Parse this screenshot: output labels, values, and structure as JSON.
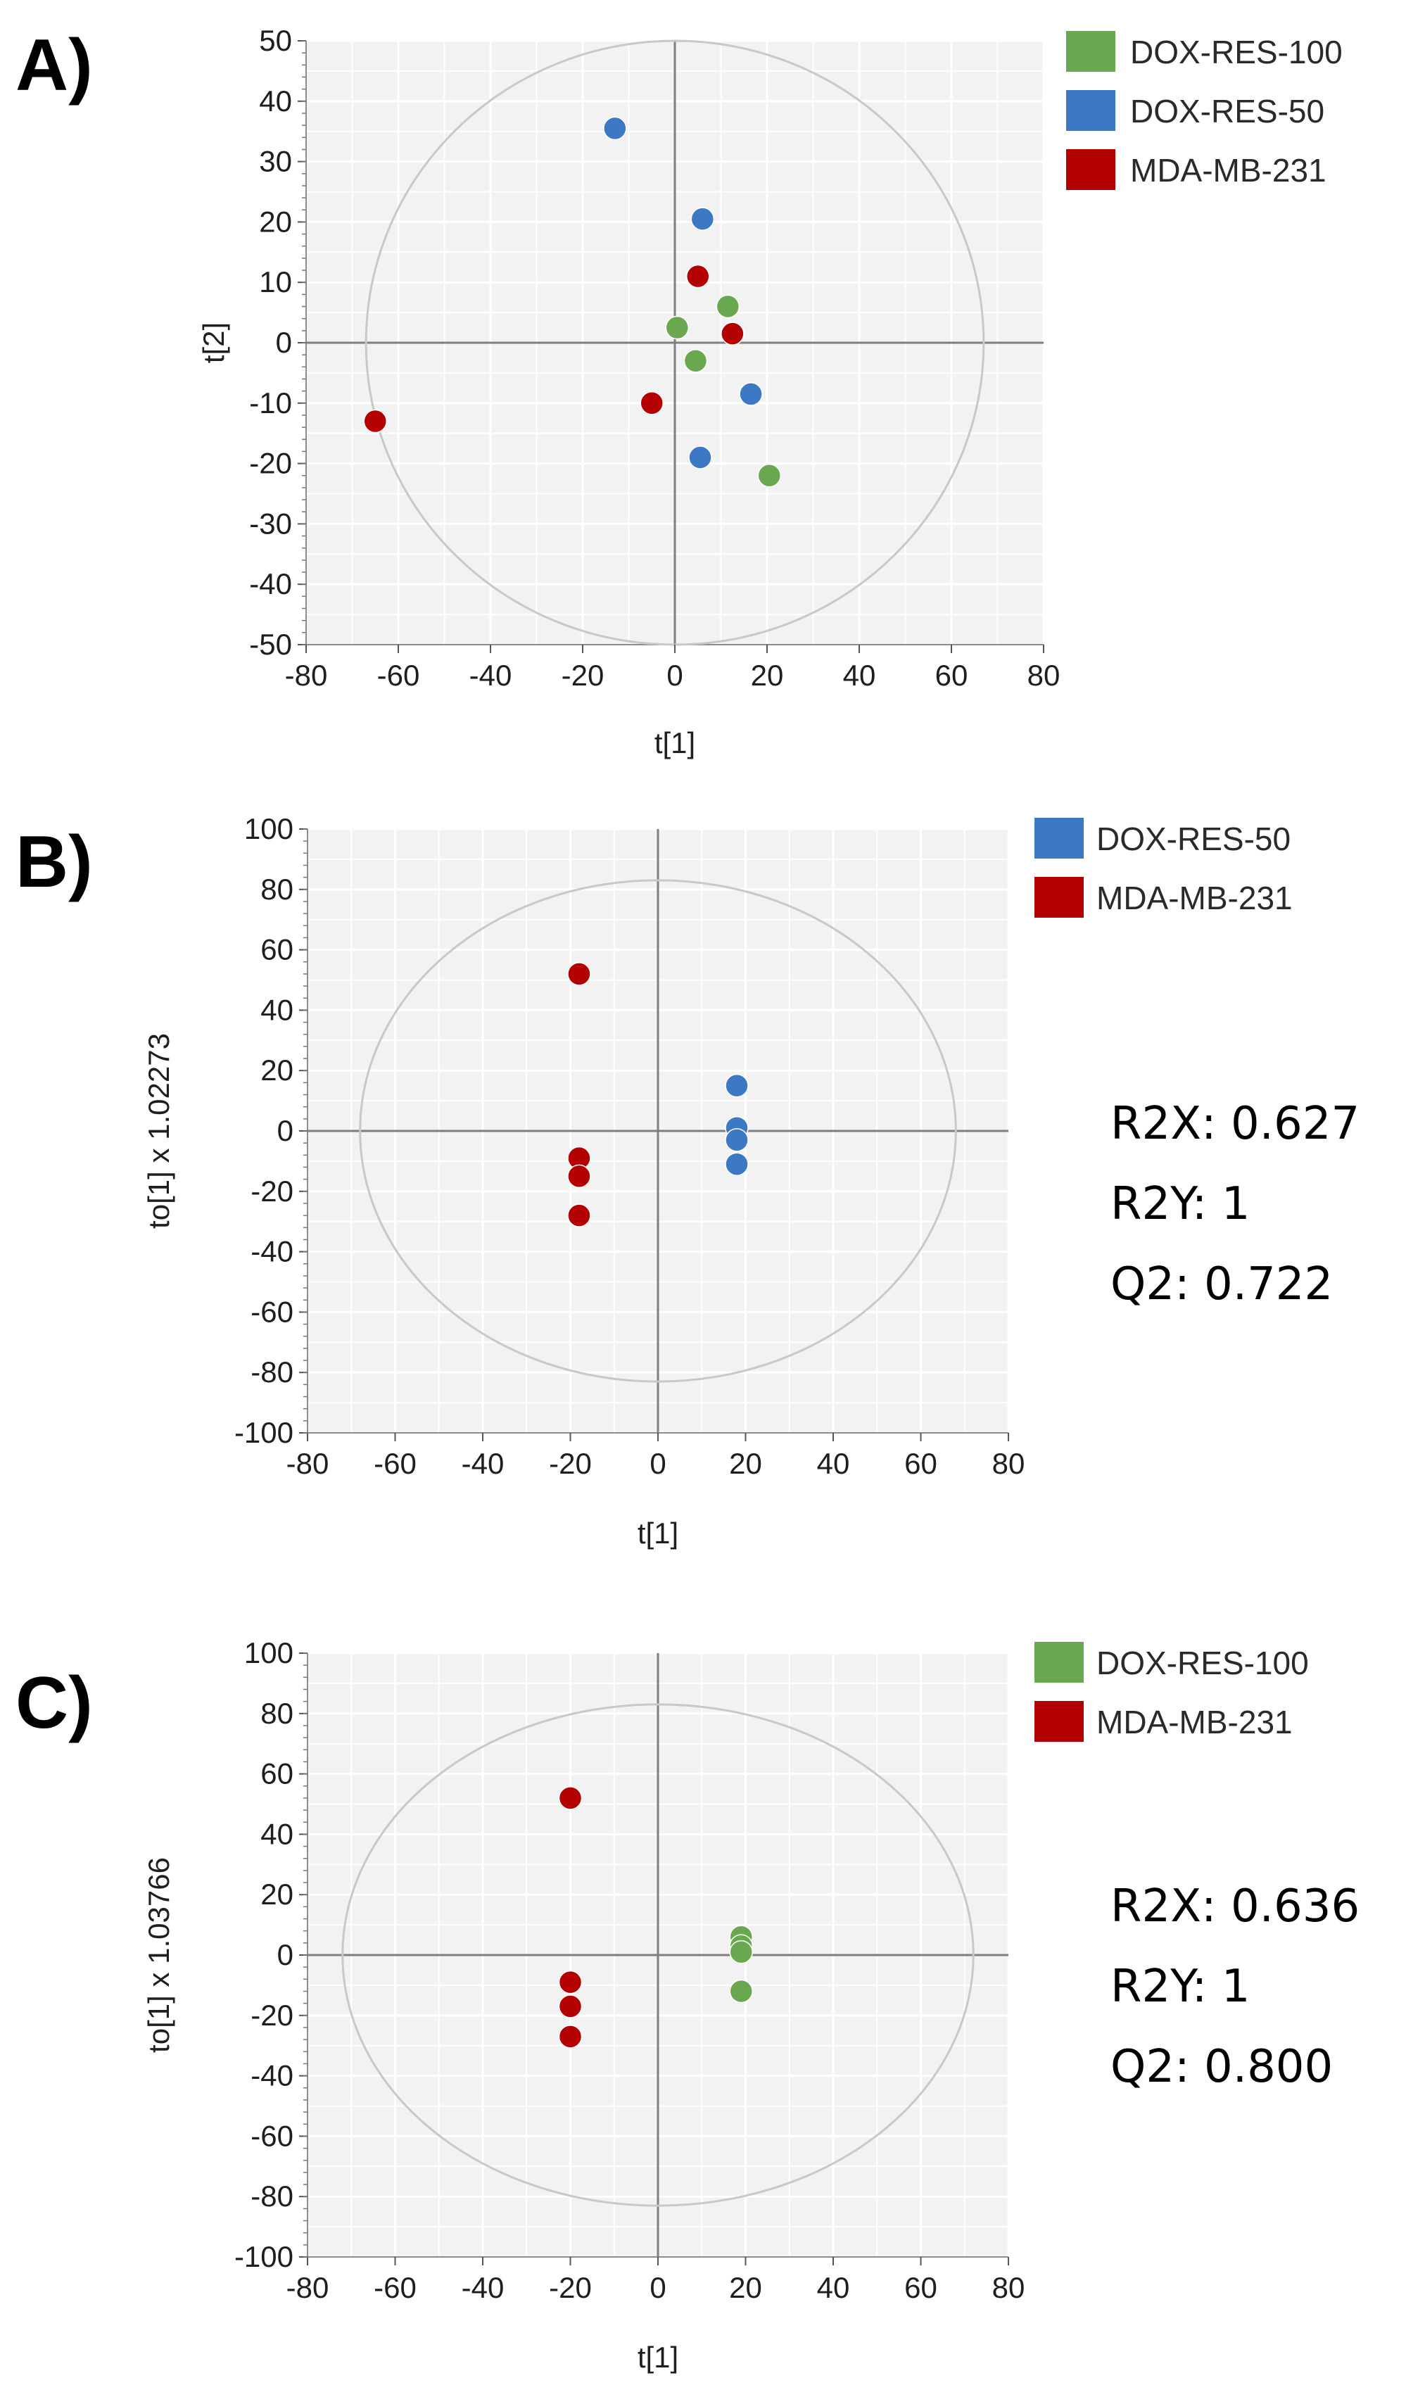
{
  "colors": {
    "dox_res_100": "#6aa84f",
    "dox_res_50": "#3d78c4",
    "mda_mb_231": "#b30000",
    "plot_background": "#f2f2f2",
    "grid": "#ffffff",
    "zero_line": "#7f7f7f",
    "ellipse": "#c8c8c8"
  },
  "chart_data": [
    {
      "type": "scatter",
      "panel_label": "A)",
      "title": "",
      "xlabel": "t[1]",
      "ylabel": "t[2]",
      "xlim": [
        -80,
        80
      ],
      "ylim": [
        -50,
        50
      ],
      "xticks": [
        -80,
        -60,
        -40,
        -20,
        0,
        20,
        40,
        60,
        80
      ],
      "yticks": [
        -50,
        -40,
        -30,
        -20,
        -10,
        0,
        10,
        20,
        30,
        40,
        50
      ],
      "ellipse": {
        "cx": 0,
        "cy": 0,
        "rx": 67,
        "ry": 50
      },
      "legend": [
        {
          "name": "DOX-RES-100",
          "color_key": "dox_res_100"
        },
        {
          "name": "DOX-RES-50",
          "color_key": "dox_res_50"
        },
        {
          "name": "MDA-MB-231",
          "color_key": "mda_mb_231"
        }
      ],
      "series": [
        {
          "name": "DOX-RES-100",
          "color_key": "dox_res_100",
          "points": [
            [
              0.5,
              2.5
            ],
            [
              4.5,
              -3
            ],
            [
              11.5,
              6
            ],
            [
              20.5,
              -22
            ]
          ]
        },
        {
          "name": "DOX-RES-50",
          "color_key": "dox_res_50",
          "points": [
            [
              -13,
              35.5
            ],
            [
              6,
              20.5
            ],
            [
              16.5,
              -8.5
            ],
            [
              5.5,
              -19
            ]
          ]
        },
        {
          "name": "MDA-MB-231",
          "color_key": "mda_mb_231",
          "points": [
            [
              5,
              11
            ],
            [
              12.5,
              1.5
            ],
            [
              -5,
              -10
            ],
            [
              -65,
              -13
            ]
          ]
        }
      ],
      "stats": []
    },
    {
      "type": "scatter",
      "panel_label": "B)",
      "title": "",
      "xlabel": "t[1]",
      "ylabel": "to[1] x 1.02273",
      "xlim": [
        -80,
        80
      ],
      "ylim": [
        -100,
        100
      ],
      "xticks": [
        -80,
        -60,
        -40,
        -20,
        0,
        20,
        40,
        60,
        80
      ],
      "yticks": [
        -100,
        -80,
        -60,
        -40,
        -20,
        0,
        20,
        40,
        60,
        80,
        100
      ],
      "ellipse": {
        "cx": 0,
        "cy": 0,
        "rx": 68,
        "ry": 83
      },
      "legend": [
        {
          "name": "DOX-RES-50",
          "color_key": "dox_res_50"
        },
        {
          "name": "MDA-MB-231",
          "color_key": "mda_mb_231"
        }
      ],
      "series": [
        {
          "name": "DOX-RES-50",
          "color_key": "dox_res_50",
          "points": [
            [
              18,
              15
            ],
            [
              18,
              1
            ],
            [
              18,
              -3
            ],
            [
              18,
              -11
            ]
          ]
        },
        {
          "name": "MDA-MB-231",
          "color_key": "mda_mb_231",
          "points": [
            [
              -18,
              52
            ],
            [
              -18,
              -9
            ],
            [
              -18,
              -15
            ],
            [
              -18,
              -28
            ]
          ]
        }
      ],
      "stats": [
        "R2X: 0.627",
        "R2Y: 1",
        "Q2: 0.722"
      ]
    },
    {
      "type": "scatter",
      "panel_label": "C)",
      "title": "",
      "xlabel": "t[1]",
      "ylabel": "to[1] x 1.03766",
      "xlim": [
        -80,
        80
      ],
      "ylim": [
        -100,
        100
      ],
      "xticks": [
        -80,
        -60,
        -40,
        -20,
        0,
        20,
        40,
        60,
        80
      ],
      "yticks": [
        -100,
        -80,
        -60,
        -40,
        -20,
        0,
        20,
        40,
        60,
        80,
        100
      ],
      "ellipse": {
        "cx": 0,
        "cy": 0,
        "rx": 72,
        "ry": 83
      },
      "legend": [
        {
          "name": "DOX-RES-100",
          "color_key": "dox_res_100"
        },
        {
          "name": "MDA-MB-231",
          "color_key": "mda_mb_231"
        }
      ],
      "series": [
        {
          "name": "DOX-RES-100",
          "color_key": "dox_res_100",
          "points": [
            [
              19,
              6
            ],
            [
              19,
              3
            ],
            [
              19,
              1
            ],
            [
              19,
              -12
            ]
          ]
        },
        {
          "name": "MDA-MB-231",
          "color_key": "mda_mb_231",
          "points": [
            [
              -20,
              52
            ],
            [
              -20,
              -9
            ],
            [
              -20,
              -17
            ],
            [
              -20,
              -27
            ]
          ]
        }
      ],
      "stats": [
        "R2X: 0.636",
        "R2Y: 1",
        "Q2: 0.800"
      ]
    }
  ]
}
